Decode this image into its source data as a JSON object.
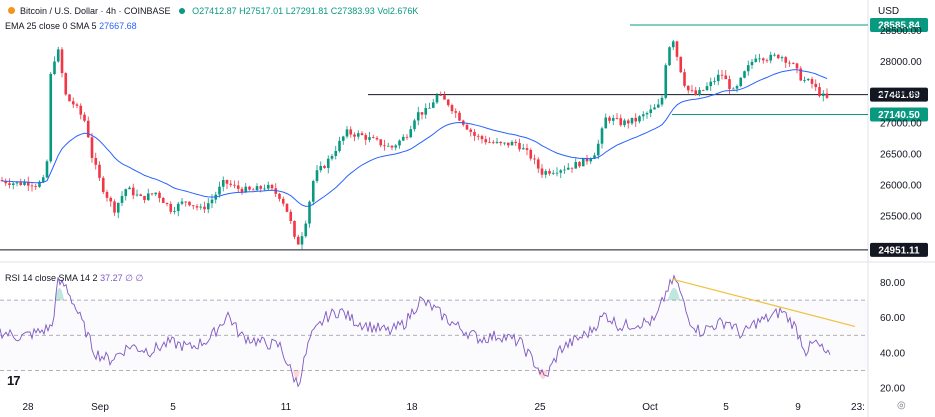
{
  "header": {
    "symbol_title": "Bitcoin / U.S. Dollar · 4h · COINBASE",
    "open": "O27412.87",
    "high": "H27517.01",
    "low": "L27291.81",
    "close": "C27383.93",
    "volume": "Vol2.676K",
    "currency": "USD",
    "ma_legend": "EMA 25 close 0 SMA 5",
    "ma_value": "27667.68",
    "rsi_legend": "RSI 14 close SMA 14 2",
    "rsi_value": "37.27",
    "rsi_null_1": "∅",
    "rsi_null_2": "∅"
  },
  "colors": {
    "up": "#089981",
    "down": "#f23645",
    "ema": "#2962ff",
    "rsi": "#7e57c2",
    "trendline": "#f0c03c",
    "support": "#089981",
    "resistance": "#131722"
  },
  "chart_data": [
    {
      "type": "candlestick",
      "title": "Bitcoin / U.S. Dollar · 4h · COINBASE",
      "x_ticks": [
        "28",
        "Sep",
        "5",
        "11",
        "18",
        "25",
        "Oct",
        "5",
        "9",
        "23:"
      ],
      "y_ticks": [
        25500,
        26000,
        26500,
        27000,
        27500,
        28000,
        28500
      ],
      "ylim": [
        24900,
        28700
      ],
      "horizontal_levels": [
        {
          "label": "28585.84",
          "value": 28585.84,
          "style": "green"
        },
        {
          "label": "27461.69",
          "value": 27461.69,
          "style": "black"
        },
        {
          "label": "27140.50",
          "value": 27140.5,
          "style": "green"
        },
        {
          "label": "24951.11",
          "value": 24951.11,
          "style": "black"
        }
      ],
      "ema_label": "EMA 25",
      "grid": false
    },
    {
      "type": "line",
      "title": "RSI 14 close SMA 14 2",
      "y_ticks": [
        20,
        40,
        60,
        80
      ],
      "ylim": [
        16,
        86
      ],
      "bands": [
        30,
        50,
        70
      ],
      "last_value": 37.27,
      "trendline": {
        "from": 82,
        "to": 55
      }
    }
  ],
  "icons": {
    "logo": "tradingview-logo-icon",
    "settings": "settings-gear-icon"
  },
  "logo_text": "17",
  "settings_glyph": "◎"
}
